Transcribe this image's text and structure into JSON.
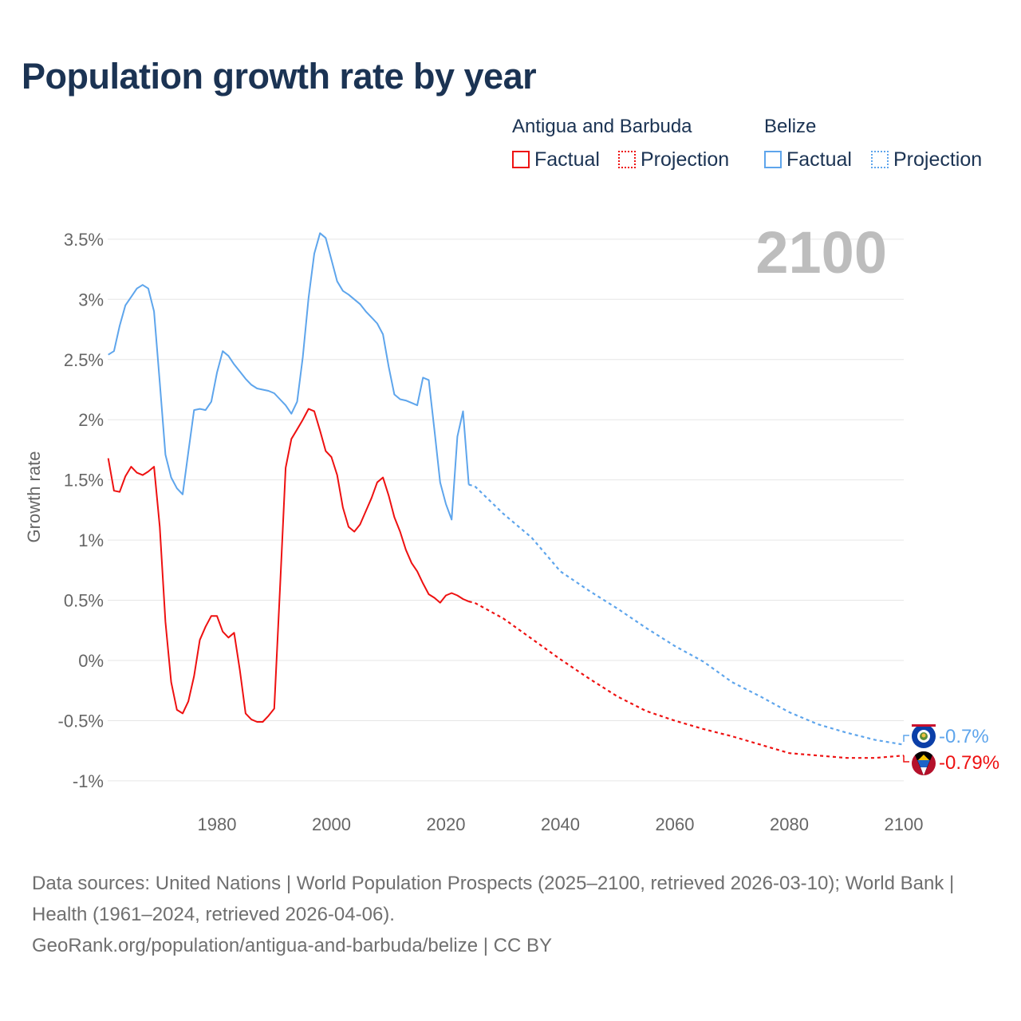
{
  "title": "Population growth rate by year",
  "legend": {
    "groups": [
      {
        "name": "Antigua and Barbuda",
        "factual": "Factual",
        "projection": "Projection",
        "color": "#ee1111"
      },
      {
        "name": "Belize",
        "factual": "Factual",
        "projection": "Projection",
        "color": "#5ea5ec"
      }
    ]
  },
  "year_display": "2100",
  "end_labels": {
    "belize": "-0.7%",
    "antigua": "-0.79%"
  },
  "footer": {
    "line1": "Data sources: United Nations | World Population Prospects (2025–2100, retrieved 2026-03-10); World Bank | Health (1961–2024, retrieved 2026-04-06).",
    "line2": "GeoRank.org/population/antigua-and-barbuda/belize | CC BY"
  },
  "chart_data": {
    "type": "line",
    "title": "Population growth rate by year",
    "xlabel": "",
    "ylabel": "Growth rate",
    "xlim": [
      1961,
      2100
    ],
    "ylim": [
      -1.1,
      3.6
    ],
    "xticks": [
      1980,
      2000,
      2020,
      2040,
      2060,
      2080,
      2100
    ],
    "yticks": [
      -1,
      -0.5,
      0,
      0.5,
      1,
      1.5,
      2,
      2.5,
      3,
      3.5
    ],
    "ytick_labels": [
      "-1%",
      "-0.5%",
      "0%",
      "0.5%",
      "1%",
      "1.5%",
      "2%",
      "2.5%",
      "3%",
      "3.5%"
    ],
    "grid": true,
    "series": [
      {
        "name": "Belize",
        "color": "#5ea5ec",
        "factual_start": 1961,
        "factual": [
          2.54,
          2.57,
          2.78,
          2.95,
          3.02,
          3.09,
          3.12,
          3.09,
          2.9,
          2.31,
          1.71,
          1.52,
          1.43,
          1.38,
          1.73,
          2.08,
          2.09,
          2.08,
          2.15,
          2.39,
          2.57,
          2.53,
          2.46,
          2.4,
          2.34,
          2.29,
          2.26,
          2.25,
          2.24,
          2.22,
          2.17,
          2.12,
          2.05,
          2.15,
          2.52,
          3.01,
          3.38,
          3.55,
          3.51,
          3.33,
          3.15,
          3.07,
          3.04,
          3.0,
          2.96,
          2.9,
          2.85,
          2.8,
          2.71,
          2.44,
          2.21,
          2.17,
          2.16,
          2.14,
          2.12,
          2.35,
          2.33,
          1.91,
          1.48,
          1.3,
          1.17,
          1.86,
          2.07,
          1.46
        ],
        "projection_years": [
          2025,
          2030,
          2035,
          2040,
          2045,
          2050,
          2055,
          2060,
          2065,
          2070,
          2075,
          2080,
          2085,
          2090,
          2095,
          2100
        ],
        "projection": [
          1.45,
          1.22,
          1.02,
          0.74,
          0.58,
          0.43,
          0.27,
          0.12,
          -0.01,
          -0.18,
          -0.3,
          -0.43,
          -0.53,
          -0.6,
          -0.66,
          -0.7
        ]
      },
      {
        "name": "Antigua and Barbuda",
        "color": "#ee1111",
        "factual_start": 1961,
        "factual": [
          1.68,
          1.41,
          1.4,
          1.53,
          1.61,
          1.56,
          1.54,
          1.57,
          1.61,
          1.11,
          0.32,
          -0.18,
          -0.41,
          -0.44,
          -0.34,
          -0.13,
          0.17,
          0.28,
          0.37,
          0.37,
          0.24,
          0.19,
          0.23,
          -0.08,
          -0.44,
          -0.49,
          -0.51,
          -0.51,
          -0.46,
          -0.4,
          0.58,
          1.6,
          1.84,
          1.92,
          2.0,
          2.09,
          2.07,
          1.91,
          1.74,
          1.69,
          1.54,
          1.27,
          1.11,
          1.07,
          1.13,
          1.24,
          1.35,
          1.48,
          1.52,
          1.37,
          1.19,
          1.07,
          0.92,
          0.81,
          0.74,
          0.64,
          0.55,
          0.52,
          0.48,
          0.54,
          0.56,
          0.54,
          0.51,
          0.49
        ],
        "projection_years": [
          2025,
          2030,
          2035,
          2040,
          2045,
          2050,
          2055,
          2060,
          2065,
          2070,
          2075,
          2080,
          2085,
          2090,
          2095,
          2100
        ],
        "projection": [
          0.48,
          0.35,
          0.18,
          0.01,
          -0.15,
          -0.3,
          -0.42,
          -0.5,
          -0.57,
          -0.63,
          -0.7,
          -0.77,
          -0.79,
          -0.81,
          -0.81,
          -0.79
        ]
      }
    ]
  }
}
